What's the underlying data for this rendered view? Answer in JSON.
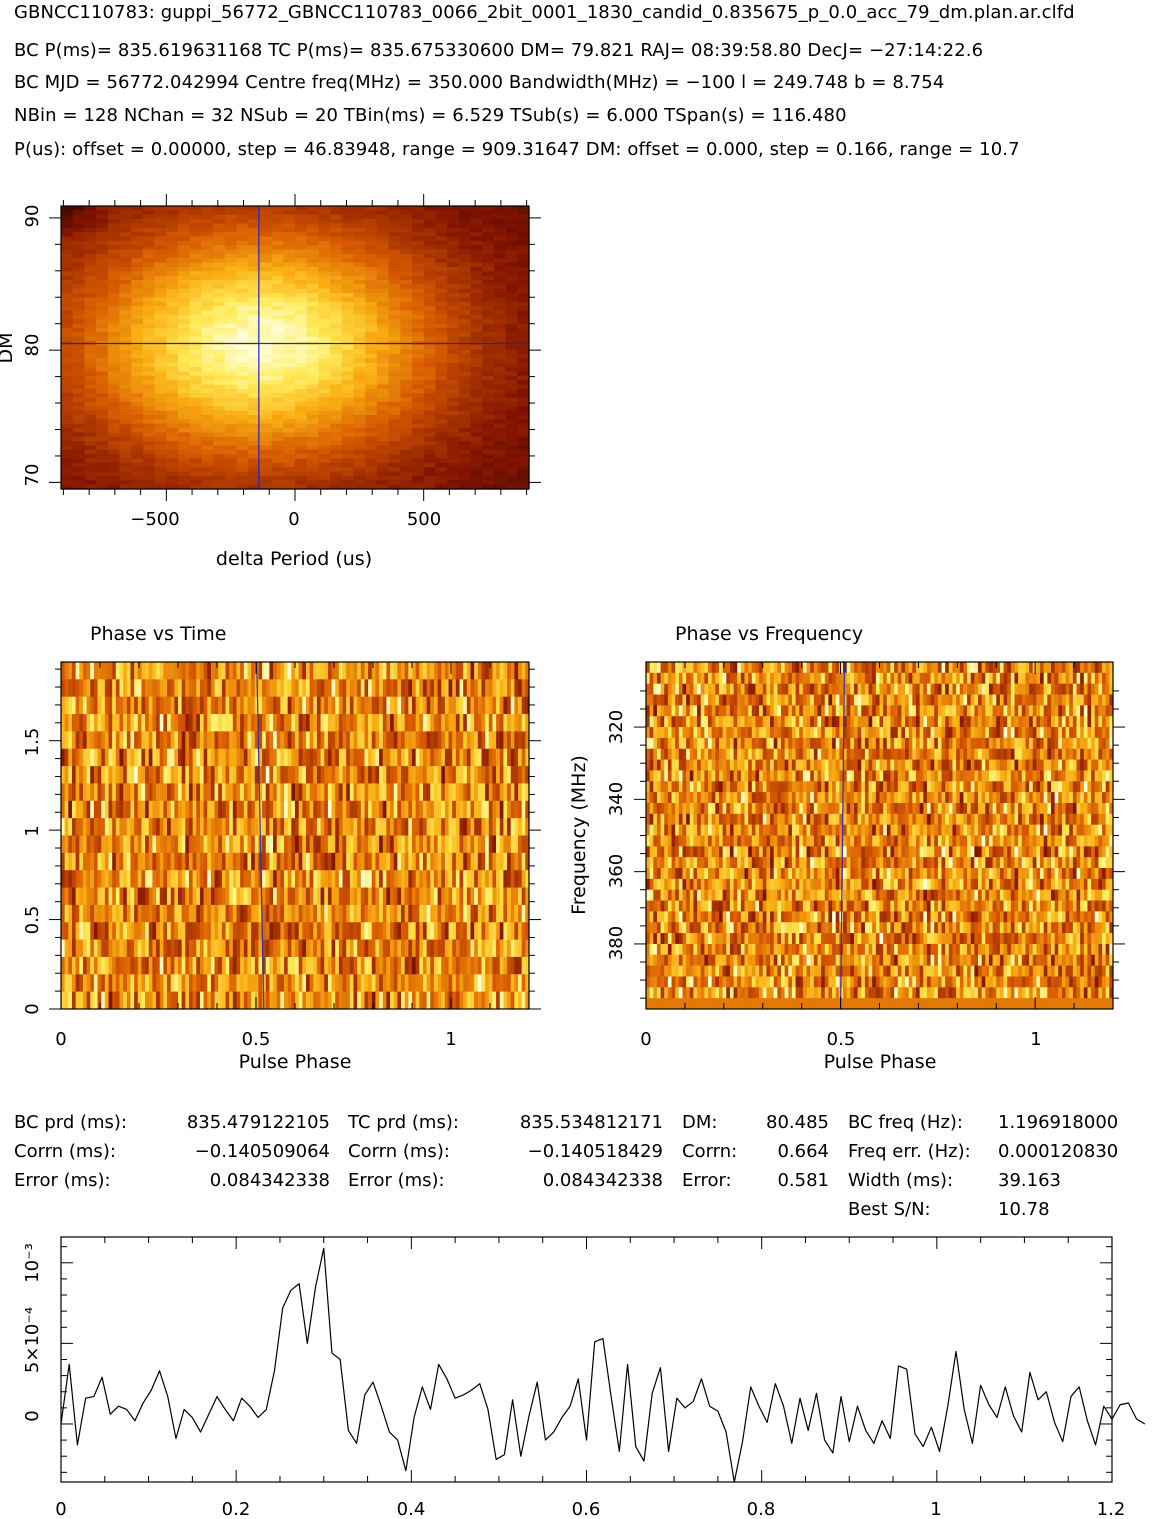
{
  "header": {
    "line1": "GBNCC110783: guppi_56772_GBNCC110783_0066_2bit_0001_1830_candid_0.835675_p_0.0_acc_79_dm.plan.ar.clfd",
    "line2": "BC P(ms)= 835.619631168 TC P(ms)= 835.675330600 DM= 79.821 RAJ= 08:39:58.80 DecJ= −27:14:22.6",
    "line3": "BC MJD = 56772.042994 Centre freq(MHz) = 350.000 Bandwidth(MHz) = −100 l = 249.748 b = 8.754",
    "line4": "NBin = 128 NChan = 32 NSub = 20 TBin(ms) = 6.529 TSub(s) = 6.000 TSpan(s) = 116.480",
    "line5": "P(us): offset = 0.00000, step = 46.83948, range = 909.31647 DM: offset = 0.000, step = 0.166, range = 10.7"
  },
  "stats": {
    "rows": [
      [
        "BC prd (ms):",
        "835.479122105",
        "TC prd (ms):",
        "835.534812171",
        "DM:",
        "80.485",
        "BC freq (Hz):",
        "1.196918000"
      ],
      [
        "Corrn (ms):",
        "−0.140509064",
        "Corrn (ms):",
        "−0.140518429",
        "Corrn:",
        "0.664",
        "Freq err. (Hz):",
        "0.000120830"
      ],
      [
        "Error (ms):",
        "0.084342338",
        "Error (ms):",
        "0.084342338",
        "Error:",
        "0.581",
        "Width (ms):",
        "39.163"
      ],
      [
        "",
        "",
        "",
        "",
        "",
        "",
        "Best S/N:",
        "10.78"
      ]
    ]
  },
  "chart_data": [
    {
      "type": "heatmap",
      "xlabel": "delta Period (us)",
      "ylabel": "DM",
      "xlim": [
        -909.31647,
        909.31647
      ],
      "ylim": [
        69.5,
        90.9
      ],
      "xticks": [
        "−500",
        "0",
        "500"
      ],
      "yticks": [
        "70",
        "80",
        "90"
      ],
      "peak": {
        "x": -140.5,
        "y": 80.5
      },
      "marker_x": -140.5,
      "marker_y": 80.5,
      "colormap": "heat"
    },
    {
      "type": "heatmap",
      "title": "Phase vs Time",
      "xlabel": "Pulse Phase",
      "ylabel": "",
      "xlim": [
        0,
        1.2
      ],
      "ylim": [
        0,
        1.94
      ],
      "xticks": [
        "0",
        "0.5",
        "1"
      ],
      "yticks": [
        "0",
        "0.5",
        "1",
        "1.5"
      ],
      "rows": 20,
      "cols": 128,
      "marker_top": 0.502,
      "marker_bottom": 0.52,
      "colormap": "heat"
    },
    {
      "type": "heatmap",
      "title": "Phase vs Frequency",
      "xlabel": "Pulse Phase",
      "ylabel": "Frequency (MHz)",
      "xlim": [
        0,
        1.2
      ],
      "ylim": [
        400,
        300
      ],
      "xticks": [
        "0",
        "0.5",
        "1"
      ],
      "yticks": [
        "320",
        "340",
        "360",
        "380"
      ],
      "rows": 32,
      "cols": 128,
      "marker_top": 0.51,
      "marker_bottom": 0.5,
      "colormap": "heat"
    },
    {
      "type": "line",
      "xlabel": "",
      "ylabel": "",
      "xlim": [
        0,
        1.2
      ],
      "ylim": [
        -0.00036,
        0.00116
      ],
      "xticks": [
        "0",
        "0.2",
        "0.4",
        "0.6",
        "0.8",
        "1",
        "1.2"
      ],
      "yticks": [
        "0",
        "5×10⁻⁴",
        "10⁻³"
      ],
      "x_step": 0.009375,
      "values": [
        0.0,
        0.00037,
        -0.00013,
        0.00016,
        0.00017,
        0.00029,
        6e-05,
        0.00011,
        9e-05,
        2e-05,
        0.00013,
        0.00021,
        0.00033,
        0.00017,
        -9e-05,
        9e-05,
        4e-05,
        -5e-05,
        6e-05,
        0.00017,
        9e-05,
        2e-05,
        0.00016,
        0.00011,
        4e-05,
        9e-05,
        0.00033,
        0.00072,
        0.00083,
        0.00087,
        0.0005,
        0.00085,
        0.00109,
        0.00044,
        0.0004,
        -4e-05,
        -0.00012,
        0.00018,
        0.00026,
        0.00011,
        -5e-05,
        -0.0001,
        -0.00029,
        4e-05,
        0.00023,
        9e-05,
        0.00037,
        0.00028,
        0.00016,
        0.00018,
        0.00021,
        0.00025,
        9e-05,
        -0.00022,
        -0.00019,
        0.00015,
        -0.0002,
        5e-05,
        0.00026,
        -0.0001,
        -5e-05,
        4e-05,
        0.00011,
        0.00028,
        -0.0001,
        0.00051,
        0.00053,
        0.00017,
        -0.00017,
        0.00037,
        -0.00014,
        -0.00023,
        0.00019,
        0.00035,
        -0.00017,
        0.00016,
        0.0001,
        0.00014,
        0.00028,
        0.00011,
        8e-05,
        -5e-05,
        -0.00036,
        -0.00011,
        0.00023,
        0.00011,
        1e-05,
        0.00025,
        0.00011,
        -0.00012,
        0.00016,
        -4e-05,
        0.00019,
        -0.0001,
        -0.00018,
        0.00017,
        -0.00011,
        0.00011,
        -4e-05,
        -0.00012,
        2e-05,
        -9e-05,
        0.00036,
        0.00034,
        -6e-05,
        -0.00014,
        -2e-05,
        -0.00017,
        0.00011,
        0.00045,
        9e-05,
        -0.00012,
        0.00024,
        0.00012,
        4e-05,
        0.00023,
        5e-05,
        -5e-05,
        0.00032,
        0.00015,
        0.0002,
        1e-05,
        -0.00011,
        0.00017,
        0.00023,
        2e-05,
        -0.00013,
        0.00011,
        3e-05,
        0.00012,
        0.00013,
        3e-05,
        0.0
      ]
    }
  ]
}
